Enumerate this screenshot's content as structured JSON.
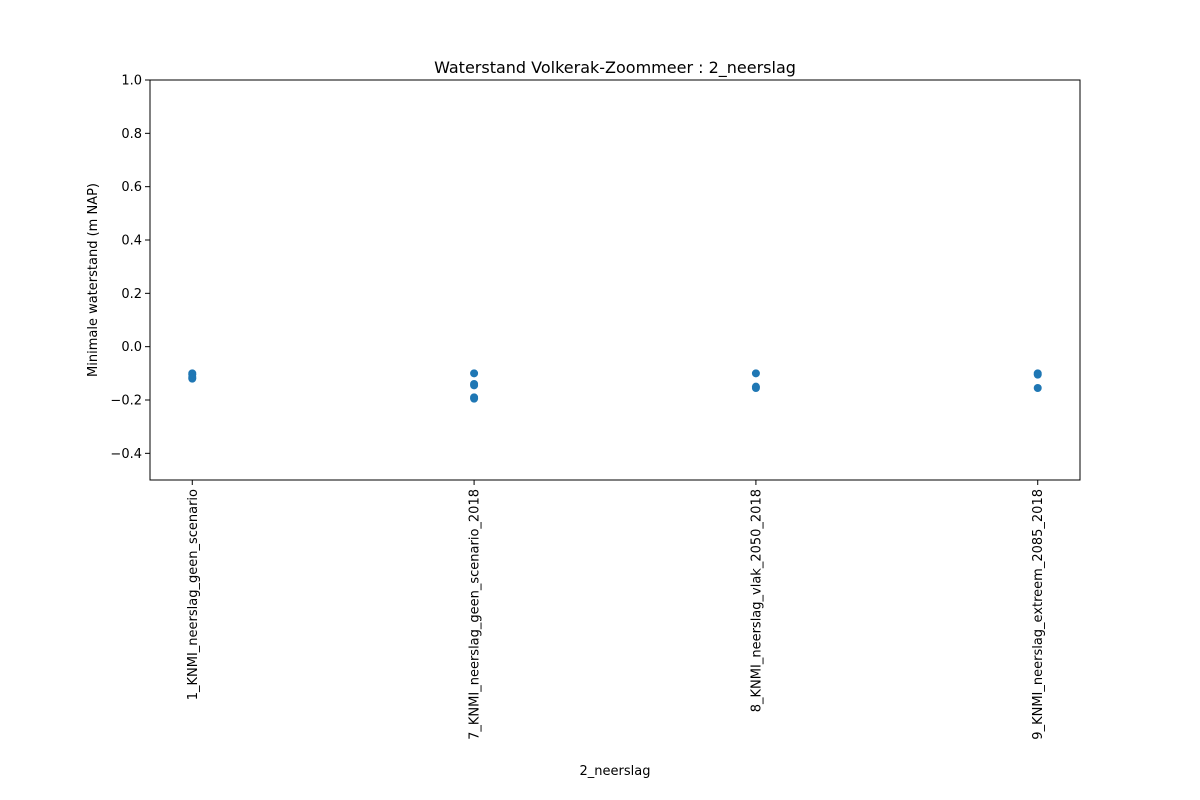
{
  "chart_data": {
    "type": "scatter",
    "title": "Waterstand Volkerak-Zoommeer : 2_neerslag",
    "xlabel": "2_neerslag",
    "ylabel": "Minimale waterstand (m NAP)",
    "categories": [
      "1_KNMI_neerslag_geen_scenario",
      "7_KNMI_neerslag_geen_scenario_2018",
      "8_KNMI_neerslag_vlak_2050_2018",
      "9_KNMI_neerslag_extreem_2085_2018"
    ],
    "ylim": [
      -0.5,
      1.0
    ],
    "yticks": [
      -0.4,
      -0.2,
      0.0,
      0.2,
      0.4,
      0.6,
      0.8,
      1.0
    ],
    "ytick_labels": [
      "−0.4",
      "−0.2",
      "0.0",
      "0.2",
      "0.4",
      "0.6",
      "0.8",
      "1.0"
    ],
    "grid": false,
    "marker_color": "#1f77b4",
    "series": [
      {
        "points": [
          {
            "x": "1_KNMI_neerslag_geen_scenario",
            "y": -0.1
          },
          {
            "x": "1_KNMI_neerslag_geen_scenario",
            "y": -0.105
          },
          {
            "x": "1_KNMI_neerslag_geen_scenario",
            "y": -0.115
          },
          {
            "x": "1_KNMI_neerslag_geen_scenario",
            "y": -0.12
          },
          {
            "x": "7_KNMI_neerslag_geen_scenario_2018",
            "y": -0.1
          },
          {
            "x": "7_KNMI_neerslag_geen_scenario_2018",
            "y": -0.14
          },
          {
            "x": "7_KNMI_neerslag_geen_scenario_2018",
            "y": -0.145
          },
          {
            "x": "7_KNMI_neerslag_geen_scenario_2018",
            "y": -0.19
          },
          {
            "x": "7_KNMI_neerslag_geen_scenario_2018",
            "y": -0.195
          },
          {
            "x": "8_KNMI_neerslag_vlak_2050_2018",
            "y": -0.1
          },
          {
            "x": "8_KNMI_neerslag_vlak_2050_2018",
            "y": -0.15
          },
          {
            "x": "8_KNMI_neerslag_vlak_2050_2018",
            "y": -0.155
          },
          {
            "x": "9_KNMI_neerslag_extreem_2085_2018",
            "y": -0.1
          },
          {
            "x": "9_KNMI_neerslag_extreem_2085_2018",
            "y": -0.105
          },
          {
            "x": "9_KNMI_neerslag_extreem_2085_2018",
            "y": -0.155
          }
        ]
      }
    ]
  }
}
